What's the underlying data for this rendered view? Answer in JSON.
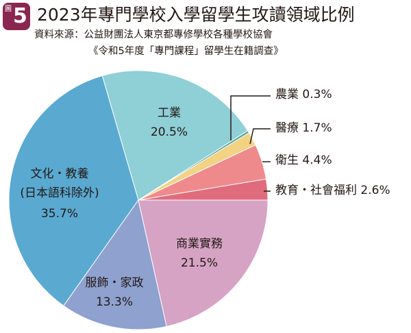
{
  "header": {
    "figure_word": "圖",
    "figure_number": "5",
    "title": "2023年專門學校入學留學生攻讀領域比例",
    "source_line1": "資料來源：公益財團法人東京都專修學校各種學校協會",
    "source_line2": "《令和5年度「專門課程」留學生在籍調查》"
  },
  "chart_data": {
    "type": "pie",
    "title": "2023年專門學校入學留學生攻讀領域比例",
    "start": "3 o'clock, counter-clockwise",
    "slices": [
      {
        "name": "教育・社會福利",
        "value": 2.6,
        "color": "#e06b7d"
      },
      {
        "name": "衛生",
        "value": 4.4,
        "color": "#ef8a8c"
      },
      {
        "name": "醫療",
        "value": 1.7,
        "color": "#f2d283"
      },
      {
        "name": "農業",
        "value": 0.3,
        "color": "#4ea89c"
      },
      {
        "name": "工業",
        "value": 20.5,
        "color": "#8fcfd6"
      },
      {
        "name": "文化・教養",
        "name_line2": "(日本語科除外)",
        "value": 35.7,
        "color": "#5aa9d1"
      },
      {
        "name": "服飾・家政",
        "value": 13.3,
        "color": "#8ea1cf"
      },
      {
        "name": "商業實務",
        "value": 21.5,
        "color": "#d6a3c4"
      }
    ],
    "labels": {
      "教育・社會福利": "教育・社會福利 2.6%",
      "衛生": "衛生 4.4%",
      "醫療": "醫療 1.7%",
      "農業": "農業 0.3%",
      "工業": "20.5%",
      "文化・教養": "35.7%",
      "服飾・家政": "13.3%",
      "商業實務": "21.5%"
    }
  }
}
